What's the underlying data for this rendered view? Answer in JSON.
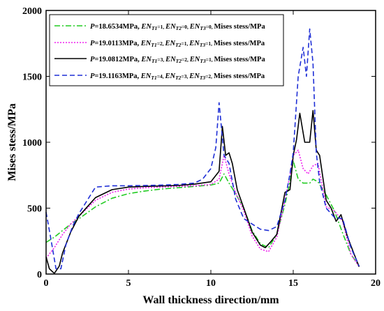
{
  "chart_data": {
    "type": "line",
    "xlabel": "Wall thickness direction/mm",
    "ylabel": "Mises stess/MPa",
    "xlim": [
      0,
      20
    ],
    "ylim": [
      0,
      2000
    ],
    "xticks": [
      0,
      5,
      10,
      15,
      20
    ],
    "yticks": [
      0,
      500,
      1000,
      1500,
      2000
    ],
    "x_tick_labels": [
      "0",
      "5",
      "10",
      "15",
      "20"
    ],
    "y_tick_labels": [
      "0",
      "500",
      "1000",
      "1500",
      "2000"
    ],
    "grid": false,
    "legend_position": "top-left",
    "series": [
      {
        "name": "P=18.6534MPa, EN_T1=1, EN_T2=0, EN_T3=0, Mises stess/MPa",
        "legend": {
          "p": "18.6534",
          "t1": "1",
          "t2": "0",
          "t3": "0",
          "suffix": "Mises stess/MPa"
        },
        "color": "#22cc22",
        "dash": "8,3,2,3",
        "x": [
          0,
          0.5,
          1,
          1.5,
          2,
          3,
          4,
          5,
          6,
          7,
          8,
          9,
          10,
          10.5,
          10.8,
          11.1,
          11.5,
          12,
          12.5,
          13,
          13.5,
          14,
          14.5,
          14.8,
          15,
          15.3,
          15.6,
          16,
          16.2,
          16.5,
          17,
          17.5,
          18,
          18.5,
          19
        ],
        "y": [
          240,
          280,
          330,
          380,
          420,
          510,
          575,
          610,
          630,
          645,
          655,
          665,
          675,
          690,
          760,
          690,
          610,
          500,
          330,
          230,
          200,
          300,
          530,
          700,
          860,
          720,
          690,
          690,
          720,
          700,
          600,
          480,
          310,
          150,
          60
        ]
      },
      {
        "name": "P=19.0113MPa, EN_T1=2, EN_T2=1, EN_T3=1, Mises stess/MPa",
        "legend": {
          "p": "19.0113",
          "t1": "2",
          "t2": "1",
          "t3": "1",
          "suffix": "Mises stess/MPa"
        },
        "color": "#ee22ee",
        "dash": "2,2",
        "x": [
          0,
          0.5,
          1,
          1.5,
          2,
          3,
          4,
          5,
          6,
          7,
          8,
          9,
          10,
          10.5,
          10.8,
          11.1,
          11.5,
          12,
          12.5,
          13,
          13.5,
          14,
          14.5,
          14.8,
          15,
          15.3,
          15.6,
          15.9,
          16.2,
          16.5,
          17,
          17.5,
          18,
          18.5,
          19
        ],
        "y": [
          120,
          200,
          300,
          380,
          440,
          560,
          620,
          645,
          655,
          660,
          665,
          670,
          680,
          720,
          900,
          760,
          620,
          480,
          290,
          190,
          170,
          280,
          560,
          750,
          900,
          940,
          800,
          760,
          820,
          840,
          510,
          480,
          400,
          150,
          55
        ]
      },
      {
        "name": "P=19.0812MPa, EN_T1=3, EN_T2=2, EN_T3=1, Mises stess/MPa",
        "legend": {
          "p": "19.0812",
          "t1": "3",
          "t2": "2",
          "t3": "1",
          "suffix": "Mises stess/MPa"
        },
        "color": "#000000",
        "dash": "",
        "x": [
          0,
          0.2,
          0.5,
          0.8,
          1,
          1.5,
          2,
          3,
          4,
          5,
          6,
          7,
          8,
          9,
          10,
          10.5,
          10.7,
          10.9,
          11.1,
          11.3,
          11.6,
          12,
          12.5,
          13,
          13.3,
          13.6,
          14,
          14.5,
          14.8,
          15,
          15.2,
          15.4,
          15.7,
          16,
          16.2,
          16.4,
          16.6,
          17,
          17.3,
          17.6,
          17.9,
          18.3,
          18.7,
          19
        ],
        "y": [
          130,
          40,
          5,
          60,
          160,
          320,
          440,
          580,
          640,
          660,
          665,
          668,
          672,
          682,
          700,
          780,
          1120,
          900,
          920,
          840,
          640,
          500,
          320,
          220,
          200,
          240,
          300,
          620,
          640,
          900,
          1020,
          1220,
          1000,
          1000,
          1240,
          940,
          900,
          560,
          500,
          400,
          450,
          280,
          150,
          55
        ]
      },
      {
        "name": "P=19.1163MPa, EN_T1=4, EN_T2=3, EN_T3=2, Mises stess/MPa",
        "legend": {
          "p": "19.1163",
          "t1": "4",
          "t2": "3",
          "t3": "2",
          "suffix": "Mises stess/MPa"
        },
        "color": "#1f2fd6",
        "dash": "7,4",
        "x": [
          0,
          0.3,
          0.6,
          0.9,
          1.2,
          1.6,
          2,
          3,
          4,
          5,
          6,
          7,
          8,
          9,
          9.5,
          10,
          10.3,
          10.5,
          10.8,
          11.1,
          11.5,
          12,
          12.5,
          13,
          13.5,
          14,
          14.5,
          14.8,
          15,
          15.3,
          15.6,
          15.8,
          16,
          16.2,
          16.4,
          16.6,
          17,
          17.5,
          18,
          18.5,
          19
        ],
        "y": [
          470,
          260,
          40,
          40,
          220,
          360,
          460,
          660,
          670,
          670,
          672,
          675,
          680,
          690,
          720,
          800,
          960,
          1300,
          900,
          840,
          570,
          420,
          380,
          340,
          330,
          360,
          560,
          760,
          920,
          1500,
          1720,
          1500,
          1860,
          1600,
          920,
          700,
          500,
          430,
          420,
          200,
          60
        ]
      }
    ]
  }
}
